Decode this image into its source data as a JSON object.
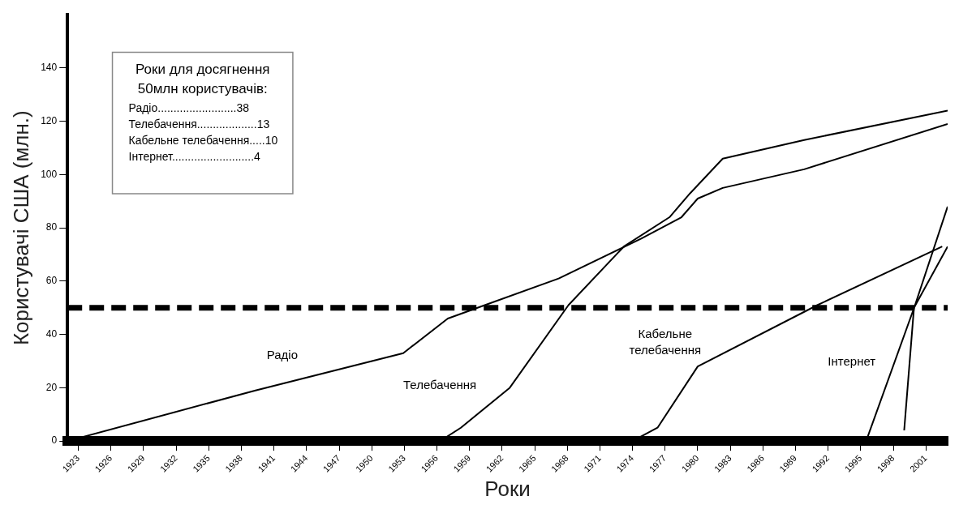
{
  "chart_data": {
    "type": "line",
    "xlabel": "Роки",
    "ylabel": "Користувачі США (млн.)",
    "annotations": [
      "Роки для досягнення",
      "50млн користувачів:",
      "Радіо.........................38",
      "Телебачення...................13",
      "Кабельне телебачення.....10",
      "Інтернет..........................4"
    ],
    "x": [
      1922,
      1939.3,
      1952.9,
      1957,
      1960.4,
      1967.2,
      1974.8,
      1978.5,
      1980,
      1982.3,
      1989.8,
      2003
    ],
    "series": [
      {
        "name": "Радіо",
        "color": "#000000",
        "values": [
          0,
          19,
          33,
          46,
          51,
          61,
          76,
          84,
          91,
          95,
          102,
          119
        ]
      },
      {
        "name": "Телебачення",
        "color": "#000000",
        "x": [
          1956.3,
          1958.2,
          1962.7,
          1968.1,
          1973.2,
          1977.4,
          1979.3,
          1982.3,
          1989.8,
          2003
        ],
        "values": [
          0,
          5,
          20,
          51,
          73,
          84,
          93,
          106,
          113,
          124
        ]
      },
      {
        "name": "Кабельне телебачення",
        "color": "#000000",
        "x": [
          1974,
          1976.3,
          1980,
          1991,
          2002.5
        ],
        "values": [
          0,
          5,
          28,
          51,
          73
        ]
      },
      {
        "name": "Інтернет",
        "color": "#000000",
        "x": [
          1995.5,
          2000,
          2003
        ],
        "values": [
          0,
          51,
          88
        ]
      },
      {
        "color": "#000000",
        "x": [
          1999,
          1999.9,
          2003
        ],
        "values": [
          4,
          50,
          73
        ]
      }
    ],
    "xlim": [
      1922,
      2003
    ],
    "xticks": [
      1923,
      1926,
      1929,
      1932,
      1935,
      1938,
      1941,
      1944,
      1947,
      1950,
      1953,
      1956,
      1959,
      1962,
      1965,
      1968,
      1971,
      1974,
      1977,
      1980,
      1983,
      1986,
      1989,
      1992,
      1995,
      1998,
      2001
    ],
    "ylim": [
      0,
      160
    ],
    "yticks": [
      0,
      20,
      40,
      60,
      80,
      100,
      120,
      140
    ],
    "ref_lines": [
      {
        "axis": "y",
        "value": 50,
        "color": "#000000",
        "line_style": "dashed"
      }
    ],
    "grid": false,
    "legend": false,
    "marker": "none",
    "line_style": "solid"
  }
}
